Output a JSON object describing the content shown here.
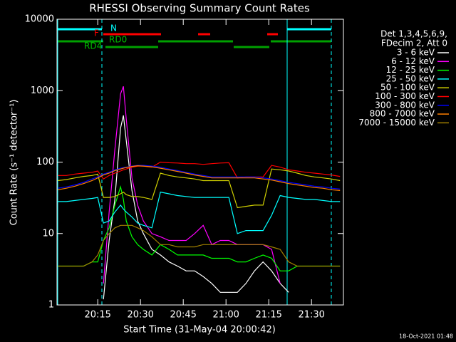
{
  "chart_data": {
    "type": "line",
    "title": "RHESSI Observing Summary Count Rates",
    "xlabel": "Start Time (31-May-04 20:00:42)",
    "ylabel": "Count Rate (s⁻¹ detector⁻¹)",
    "legend_title": [
      "Det 1,3,4,5,6,9,",
      "FDecim 2, Att 0"
    ],
    "footer": "18-Oct-2021 01:48",
    "log_y": true,
    "xlim": [
      0.7,
      101.2
    ],
    "ylim": [
      1,
      10000
    ],
    "xticks": [
      {
        "value": 15,
        "label": "20:15"
      },
      {
        "value": 30,
        "label": "20:30"
      },
      {
        "value": 45,
        "label": "20:45"
      },
      {
        "value": 60,
        "label": "21:00"
      },
      {
        "value": 75,
        "label": "21:15"
      },
      {
        "value": 90,
        "label": "21:30"
      }
    ],
    "yticks": [
      1,
      10,
      100,
      1000,
      10000
    ],
    "annotations": [
      {
        "text": "N",
        "color": "#00ffff"
      },
      {
        "text": "F",
        "color": "#ff0000"
      },
      {
        "text": "RD0",
        "color": "#00c000"
      },
      {
        "text": "RD4",
        "color": "#00c000"
      }
    ],
    "x": [
      1,
      4,
      7,
      10,
      13,
      15,
      17,
      19,
      21,
      23,
      24,
      25,
      27,
      29,
      31,
      34,
      37,
      40,
      43,
      46,
      49,
      52,
      55,
      58,
      61,
      64,
      67,
      70,
      73,
      76,
      79,
      82,
      85,
      88,
      91,
      94,
      97,
      100
    ],
    "series": [
      {
        "name": "3 - 6 keV",
        "color": "#ffffff",
        "values": [
          null,
          null,
          null,
          null,
          null,
          null,
          1.2,
          8,
          30,
          300,
          450,
          200,
          40,
          15,
          10,
          6,
          5,
          4,
          3.5,
          3,
          3,
          2.5,
          2,
          1.5,
          1.5,
          1.5,
          2,
          3,
          4,
          3,
          2,
          1.5,
          null,
          null,
          null,
          null,
          null,
          null
        ]
      },
      {
        "name": "6 - 12 keV",
        "color": "#ff00ff",
        "values": [
          null,
          null,
          null,
          null,
          null,
          null,
          2,
          20,
          150,
          900,
          1150,
          400,
          60,
          25,
          15,
          10,
          9,
          8,
          8,
          8,
          10,
          13,
          7,
          8,
          8,
          7,
          7,
          7,
          7,
          6,
          2,
          null,
          null,
          null,
          null,
          null,
          null,
          null
        ]
      },
      {
        "name": "12 - 25 keV",
        "color": "#00ff00",
        "values": [
          3.5,
          3.5,
          3.5,
          3.5,
          4,
          4,
          8,
          12,
          25,
          45,
          30,
          15,
          9,
          7,
          6,
          5,
          7,
          6,
          5,
          5,
          5,
          5,
          4.5,
          4.5,
          4.5,
          4,
          4,
          4.5,
          5,
          4.5,
          3,
          3,
          3.5,
          3.5,
          3.5,
          3.5,
          3.5,
          3.5
        ]
      },
      {
        "name": "25 - 50 keV",
        "color": "#00ffff",
        "values": [
          28,
          28,
          29,
          30,
          31,
          32,
          14,
          15,
          20,
          25,
          22,
          20,
          17,
          14,
          13,
          12,
          38,
          36,
          34,
          33,
          32,
          32,
          32,
          32,
          32,
          10,
          11,
          11,
          11,
          18,
          34,
          32,
          31,
          30,
          30,
          29,
          28,
          28
        ]
      },
      {
        "name": "50 - 100 keV",
        "color": "#d0d000",
        "values": [
          55,
          57,
          60,
          63,
          65,
          68,
          32,
          32,
          33,
          36,
          38,
          35,
          33,
          33,
          32,
          30,
          70,
          65,
          62,
          60,
          58,
          55,
          55,
          55,
          55,
          23,
          24,
          25,
          25,
          80,
          78,
          75,
          70,
          65,
          62,
          60,
          58,
          55
        ]
      },
      {
        "name": "100 - 300 keV",
        "color": "#ff0000",
        "values": [
          65,
          65,
          68,
          70,
          72,
          75,
          58,
          65,
          70,
          75,
          78,
          80,
          85,
          88,
          88,
          85,
          100,
          98,
          97,
          95,
          95,
          93,
          95,
          97,
          98,
          60,
          62,
          62,
          62,
          90,
          85,
          78,
          75,
          72,
          70,
          68,
          66,
          63
        ]
      },
      {
        "name": "300 - 800 keV",
        "color": "#0000ff",
        "values": [
          43,
          45,
          48,
          52,
          58,
          62,
          68,
          72,
          78,
          82,
          84,
          85,
          88,
          90,
          90,
          88,
          85,
          80,
          76,
          72,
          68,
          65,
          62,
          62,
          62,
          62,
          62,
          62,
          60,
          58,
          55,
          52,
          50,
          48,
          46,
          45,
          43,
          42
        ]
      },
      {
        "name": "800 - 7000 keV",
        "color": "#ff8000",
        "values": [
          41,
          43,
          46,
          50,
          55,
          60,
          66,
          70,
          76,
          80,
          82,
          84,
          87,
          89,
          88,
          86,
          82,
          78,
          74,
          70,
          66,
          63,
          60,
          60,
          60,
          60,
          60,
          60,
          58,
          56,
          53,
          50,
          48,
          46,
          44,
          43,
          41,
          40
        ]
      },
      {
        "name": "7000 - 15000 keV",
        "color": "#a08000",
        "values": [
          3.5,
          3.5,
          3.5,
          3.5,
          4,
          5,
          8,
          10,
          12,
          13,
          13,
          13,
          13,
          12,
          11,
          9,
          7,
          7,
          6.5,
          6.5,
          6.5,
          7,
          7,
          7,
          7,
          7,
          7,
          7,
          7,
          6.5,
          6,
          4,
          3.5,
          3.5,
          3.5,
          3.5,
          3.5,
          3.5
        ]
      }
    ]
  }
}
